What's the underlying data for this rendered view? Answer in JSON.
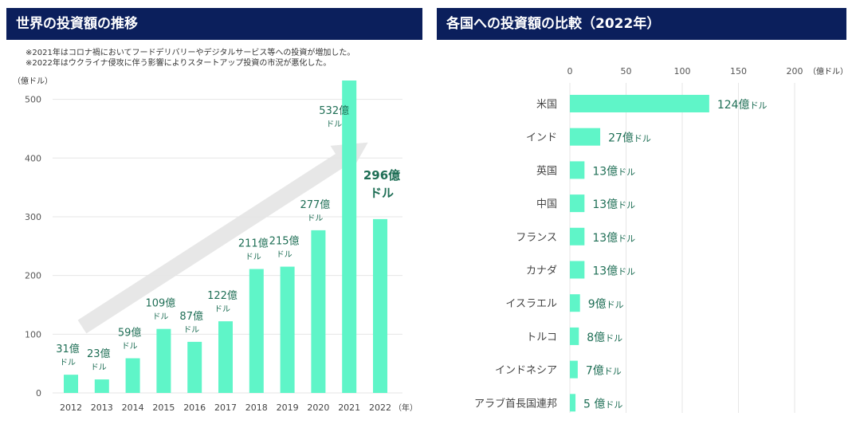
{
  "left_panel": {
    "title": "世界の投資額の推移",
    "notes": [
      "※2021年はコロナ禍においてフードデリバリーやデジタルサービス等への投資が増加した。",
      "※2022年はウクライナ侵攻に伴う影響によりスタートアップ投資の市況が悪化した。"
    ]
  },
  "right_panel": {
    "title": "各国への投資額の比較（2022年）"
  },
  "colors": {
    "header_bg": "#0b1f5c",
    "bar": "#5ff5c8",
    "label_text": "#1e6e55",
    "arrow": "#e4e4e4",
    "grid": "#e6e6e6"
  },
  "chart_data": [
    {
      "type": "bar",
      "title": "世界の投資額の推移",
      "ylabel": "（億ドル）",
      "xlabel": "（年）",
      "ylim": [
        0,
        532
      ],
      "yticks": [
        "0",
        "100",
        "200",
        "300",
        "400",
        "500"
      ],
      "categories": [
        "2012",
        "2013",
        "2014",
        "2015",
        "2016",
        "2017",
        "2018",
        "2019",
        "2020",
        "2021",
        "2022"
      ],
      "values": [
        31,
        23,
        59,
        109,
        87,
        122,
        211,
        215,
        277,
        532,
        296
      ],
      "data_labels": [
        {
          "value": "31億",
          "unit": "ドル"
        },
        {
          "value": "23億",
          "unit": "ドル"
        },
        {
          "value": "59億",
          "unit": "ドル"
        },
        {
          "value": "109億",
          "unit": "ドル"
        },
        {
          "value": "87億",
          "unit": "ドル"
        },
        {
          "value": "122億",
          "unit": "ドル"
        },
        {
          "value": "211億",
          "unit": "ドル"
        },
        {
          "value": "215億",
          "unit": "ドル"
        },
        {
          "value": "277億",
          "unit": "ドル"
        },
        {
          "value": "532億",
          "unit": "ドル"
        },
        {
          "value": "296億",
          "unit": "ドル"
        }
      ],
      "highlight_index": 10,
      "trend_arrow": true,
      "grid": true
    },
    {
      "type": "bar",
      "orientation": "horizontal",
      "title": "各国への投資額の比較（2022年）",
      "xlabel": "（億ドル）",
      "xlim": [
        0,
        200
      ],
      "xticks": [
        "0",
        "50",
        "100",
        "150",
        "200"
      ],
      "categories": [
        "米国",
        "インド",
        "英国",
        "中国",
        "フランス",
        "カナダ",
        "イスラエル",
        "トルコ",
        "インドネシア",
        "アラブ首長国連邦"
      ],
      "values": [
        124,
        27,
        13,
        13,
        13,
        13,
        9,
        8,
        7,
        5
      ],
      "data_labels": [
        {
          "value": "124億",
          "unit": "ドル"
        },
        {
          "value": "27億",
          "unit": "ドル"
        },
        {
          "value": "13億",
          "unit": "ドル"
        },
        {
          "value": "13億",
          "unit": "ドル"
        },
        {
          "value": "13億",
          "unit": "ドル"
        },
        {
          "value": "13億",
          "unit": "ドル"
        },
        {
          "value": "9億",
          "unit": "ドル"
        },
        {
          "value": "8億",
          "unit": "ドル"
        },
        {
          "value": "7億",
          "unit": "ドル"
        },
        {
          "value": "5 億",
          "unit": "ドル"
        }
      ],
      "grid": true
    }
  ]
}
